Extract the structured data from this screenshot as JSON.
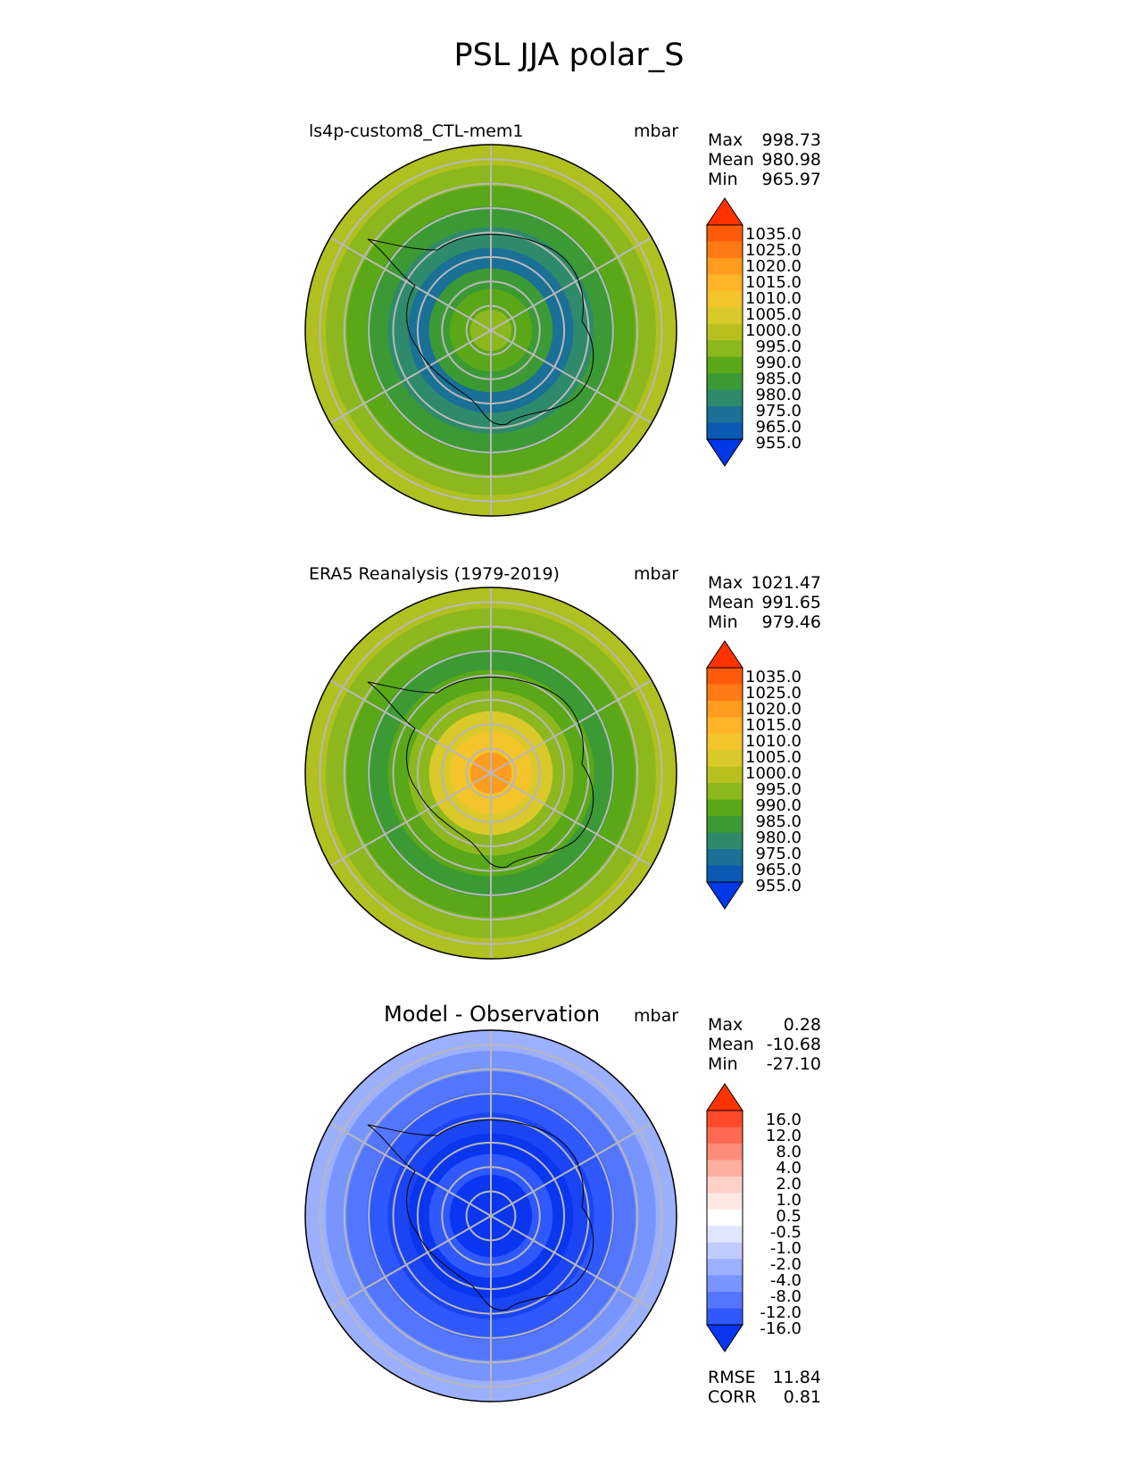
{
  "figure_title": "PSL JJA polar_S",
  "panels": [
    {
      "title": "ls4p-custom8_CTL-mem1",
      "units": "mbar",
      "stats": [
        {
          "label": "Max",
          "value": "998.73"
        },
        {
          "label": "Mean",
          "value": "980.98"
        },
        {
          "label": "Min",
          "value": "965.97"
        }
      ],
      "colorbar": {
        "labels": [
          "1035.0",
          "1025.0",
          "1020.0",
          "1015.0",
          "1010.0",
          "1005.0",
          "1000.0",
          "995.0",
          "990.0",
          "985.0",
          "980.0",
          "975.0",
          "965.0",
          "955.0"
        ],
        "colors": [
          "#ff3300",
          "#ff5a0a",
          "#ff7a14",
          "#ff9b1e",
          "#ffb428",
          "#f2c42a",
          "#d9c92a",
          "#b8c020",
          "#8cb81e",
          "#5aa818",
          "#3c9a34",
          "#2e8a6a",
          "#1a7096",
          "#0a5ab4",
          "#0038e6"
        ]
      },
      "map_rings": [
        "#b0c020",
        "#8cb81e",
        "#5aa818",
        "#3c9a34",
        "#2e8a6a",
        "#1a7096",
        "#3c9a34",
        "#5aa818",
        "#8cb81e"
      ]
    },
    {
      "title": "ERA5 Reanalysis (1979-2019)",
      "units": "mbar",
      "stats": [
        {
          "label": "Max",
          "value": "1021.47"
        },
        {
          "label": "Mean",
          "value": "991.65"
        },
        {
          "label": "Min",
          "value": "979.46"
        }
      ],
      "colorbar": {
        "labels": [
          "1035.0",
          "1025.0",
          "1020.0",
          "1015.0",
          "1010.0",
          "1005.0",
          "1000.0",
          "995.0",
          "990.0",
          "985.0",
          "980.0",
          "975.0",
          "965.0",
          "955.0"
        ],
        "colors": [
          "#ff3300",
          "#ff5a0a",
          "#ff7a14",
          "#ff9b1e",
          "#ffb428",
          "#f2c42a",
          "#d9c92a",
          "#b8c020",
          "#8cb81e",
          "#5aa818",
          "#3c9a34",
          "#2e8a6a",
          "#1a7096",
          "#0a5ab4",
          "#0038e6"
        ]
      },
      "map_rings": [
        "#b0c020",
        "#8cb81e",
        "#5aa818",
        "#3c9a34",
        "#5aa818",
        "#8cb81e",
        "#d9c92a",
        "#f2c42a",
        "#ff9b1e"
      ]
    },
    {
      "title": "Model - Observation",
      "units": "mbar",
      "stats": [
        {
          "label": "Max",
          "value": "0.28"
        },
        {
          "label": "Mean",
          "value": "-10.68"
        },
        {
          "label": "Min",
          "value": "-27.10"
        }
      ],
      "colorbar": {
        "labels": [
          "16.0",
          "12.0",
          "8.0",
          "4.0",
          "2.0",
          "1.0",
          "0.5",
          "-0.5",
          "-1.0",
          "-2.0",
          "-4.0",
          "-8.0",
          "-12.0",
          "-16.0"
        ],
        "colors": [
          "#ff3300",
          "#ff4a2a",
          "#ff6a50",
          "#ff8c7a",
          "#ffaea0",
          "#ffd0c8",
          "#ffe8e4",
          "#ffffff",
          "#e0e6ff",
          "#c0ccff",
          "#9cb0ff",
          "#7894ff",
          "#5476ff",
          "#3058ff",
          "#0a36f0"
        ]
      },
      "map_rings": [
        "#9cb0ff",
        "#7894ff",
        "#5476ff",
        "#3058ff",
        "#1a44f4",
        "#0a36f0",
        "#3058ff",
        "#0a36f0",
        "#0a36f0"
      ],
      "extra_stats": [
        {
          "label": "RMSE",
          "value": "11.84"
        },
        {
          "label": "CORR",
          "value": "0.81"
        }
      ]
    }
  ]
}
